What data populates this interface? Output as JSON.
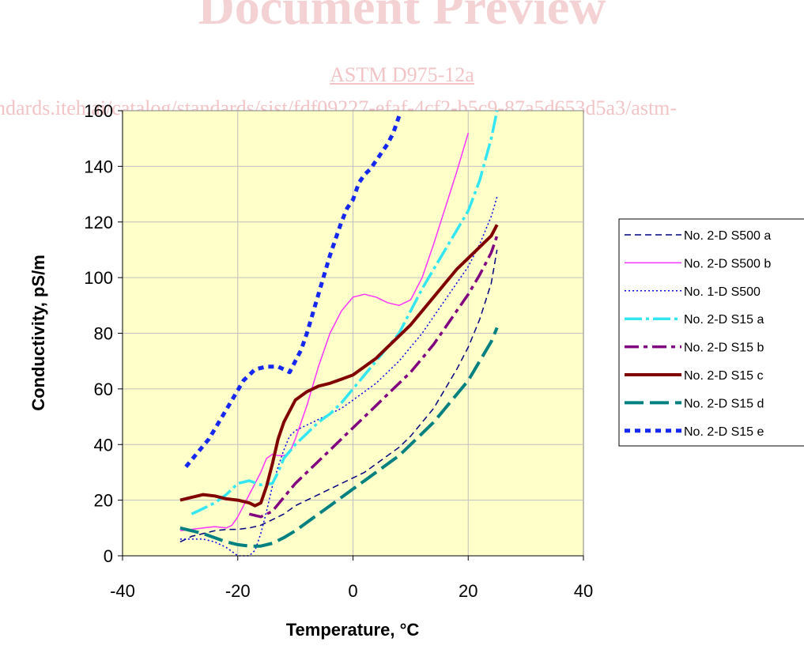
{
  "watermark": {
    "title": "Document Preview",
    "standard": "ASTM D975-12a",
    "url": "ndards.iteh.ai/catalog/standards/sist/fdf09227-efaf-4cf2-b5c9-87a5d653d5a3/astm-"
  },
  "colors": {
    "plot_background": "#ffffc9",
    "grid": "#c0c0c0"
  },
  "chart_data": {
    "type": "line",
    "xlabel": "Temperature, °C",
    "ylabel": "Conductivity, pS/m",
    "xlim": [
      -40,
      40
    ],
    "ylim": [
      0,
      160
    ],
    "xticks": [
      -40,
      -20,
      0,
      20,
      40
    ],
    "yticks": [
      0,
      20,
      40,
      60,
      80,
      100,
      120,
      140,
      160
    ],
    "grid": "vertical and horizontal at major ticks",
    "legend_position": "right",
    "series": [
      {
        "name": "No. 2-D S500 a",
        "color": "#000080",
        "dash": "8,5",
        "width": 1.5,
        "x": [
          -30,
          -28,
          -26,
          -24,
          -22,
          -20,
          -18,
          -16,
          -14,
          -12,
          -10,
          -8,
          -6,
          -4,
          -2,
          0,
          2,
          4,
          6,
          8,
          10,
          12,
          14,
          16,
          18,
          20,
          22,
          24,
          25
        ],
        "y": [
          5,
          7,
          8,
          9,
          9.5,
          9.5,
          10,
          11,
          13,
          15,
          18,
          20,
          22,
          24,
          26,
          28,
          30,
          33,
          36,
          39,
          43,
          48,
          53,
          60,
          67,
          75,
          85,
          98,
          110
        ]
      },
      {
        "name": "No. 2-D S500 b",
        "color": "#ff33ff",
        "dash": "",
        "width": 1.5,
        "x": [
          -30,
          -26,
          -24,
          -22,
          -21,
          -20,
          -18,
          -16,
          -15,
          -14,
          -13,
          -12,
          -11,
          -10,
          -8,
          -6,
          -4,
          -2,
          0,
          2,
          4,
          6,
          8,
          10,
          12,
          14,
          16,
          18,
          20
        ],
        "y": [
          9,
          10,
          10.5,
          10,
          11,
          14,
          22,
          30,
          35,
          36.5,
          36,
          36,
          37,
          42,
          54,
          68,
          80,
          88,
          93,
          94,
          93,
          91,
          90,
          92,
          100,
          112,
          125,
          138,
          152
        ]
      },
      {
        "name": "No. 1-D S500",
        "color": "#0000ee",
        "dash": "2,3",
        "width": 1.5,
        "x": [
          -30,
          -28,
          -26,
          -24,
          -22,
          -20,
          -19,
          -18,
          -17,
          -16,
          -15,
          -14,
          -13,
          -12,
          -11,
          -10,
          -8,
          -6,
          -4,
          -2,
          0,
          2,
          4,
          6,
          8,
          10,
          12,
          14,
          16,
          18,
          20,
          22,
          24,
          25
        ],
        "y": [
          6,
          6,
          6,
          5,
          3,
          0,
          0,
          0,
          2,
          8,
          16,
          25,
          32,
          38,
          43,
          45,
          47,
          49,
          51,
          53,
          56,
          59,
          62,
          66,
          70,
          75,
          80,
          86,
          92,
          98,
          104,
          112,
          122,
          129
        ]
      },
      {
        "name": "No. 2-D S15 a",
        "color": "#33e6f2",
        "dash": "22,5,4,5",
        "width": 3.5,
        "x": [
          -28,
          -26,
          -24,
          -22,
          -20,
          -18,
          -16,
          -14,
          -13,
          -12,
          -10,
          -8,
          -6,
          -4,
          -2,
          0,
          2,
          4,
          6,
          8,
          10,
          12,
          14,
          16,
          18,
          20,
          22,
          24,
          25
        ],
        "y": [
          15,
          17,
          19,
          22,
          26,
          27,
          25.5,
          26,
          30,
          35,
          40,
          44,
          48,
          51,
          55,
          60,
          65,
          70,
          75,
          80,
          88,
          96,
          103,
          110,
          117,
          124,
          135,
          150,
          160
        ]
      },
      {
        "name": "No. 2-D S15 b",
        "color": "#800080",
        "dash": "18,6,5,6",
        "width": 3.5,
        "x": [
          -18,
          -16,
          -14,
          -12,
          -10,
          -8,
          -6,
          -4,
          -2,
          0,
          2,
          4,
          6,
          8,
          10,
          12,
          14,
          16,
          18,
          20,
          22,
          24,
          25
        ],
        "y": [
          15,
          14,
          16,
          21,
          26,
          30,
          34,
          38,
          42,
          46,
          50,
          54,
          58,
          62,
          66,
          71,
          76,
          82,
          88,
          94,
          101,
          109,
          115
        ]
      },
      {
        "name": "No. 2-D S15 c",
        "color": "#800000",
        "dash": "",
        "width": 4,
        "x": [
          -30,
          -28,
          -26,
          -24,
          -22,
          -20,
          -18,
          -17,
          -16,
          -15,
          -14,
          -13,
          -12,
          -11,
          -10,
          -8,
          -6,
          -4,
          -2,
          0,
          2,
          4,
          6,
          8,
          10,
          12,
          14,
          16,
          18,
          20,
          22,
          24,
          25
        ],
        "y": [
          20,
          21,
          22,
          21.5,
          20.5,
          20,
          19,
          18,
          19,
          25,
          33,
          42,
          48,
          52,
          56,
          59,
          61,
          62,
          63.5,
          65,
          68,
          71,
          75,
          79,
          83,
          88,
          93,
          98,
          103,
          107,
          111,
          115,
          119
        ]
      },
      {
        "name": "No. 2-D S15 d",
        "color": "#008080",
        "dash": "24,8",
        "width": 4,
        "x": [
          -30,
          -28,
          -26,
          -24,
          -22,
          -20,
          -18,
          -16,
          -14,
          -12,
          -10,
          -8,
          -6,
          -4,
          -2,
          0,
          2,
          4,
          6,
          8,
          10,
          12,
          14,
          16,
          18,
          20,
          22,
          24,
          25
        ],
        "y": [
          10,
          9,
          8,
          6.5,
          5,
          4,
          3.5,
          3.5,
          4.5,
          6.5,
          9,
          12,
          15,
          18,
          21,
          24,
          27,
          30,
          33,
          36,
          40,
          44,
          48,
          53,
          58,
          63,
          70,
          77,
          82
        ]
      },
      {
        "name": "No. 2-D S15 e",
        "color": "#1428f0",
        "dash": "7,6",
        "width": 5,
        "x": [
          -29,
          -27,
          -25,
          -23,
          -21,
          -19,
          -17,
          -15,
          -13,
          -11,
          -10,
          -9,
          -8,
          -7,
          -6,
          -5,
          -4,
          -3,
          -2,
          -1,
          0,
          1,
          2,
          3,
          4,
          5,
          6,
          7,
          8
        ],
        "y": [
          32,
          37,
          42,
          49,
          56,
          63,
          67,
          68,
          68,
          66,
          70,
          74,
          80,
          87,
          94,
          101,
          108,
          114,
          120,
          125,
          128,
          134,
          137,
          139,
          142,
          145,
          148,
          152,
          158
        ]
      }
    ]
  }
}
